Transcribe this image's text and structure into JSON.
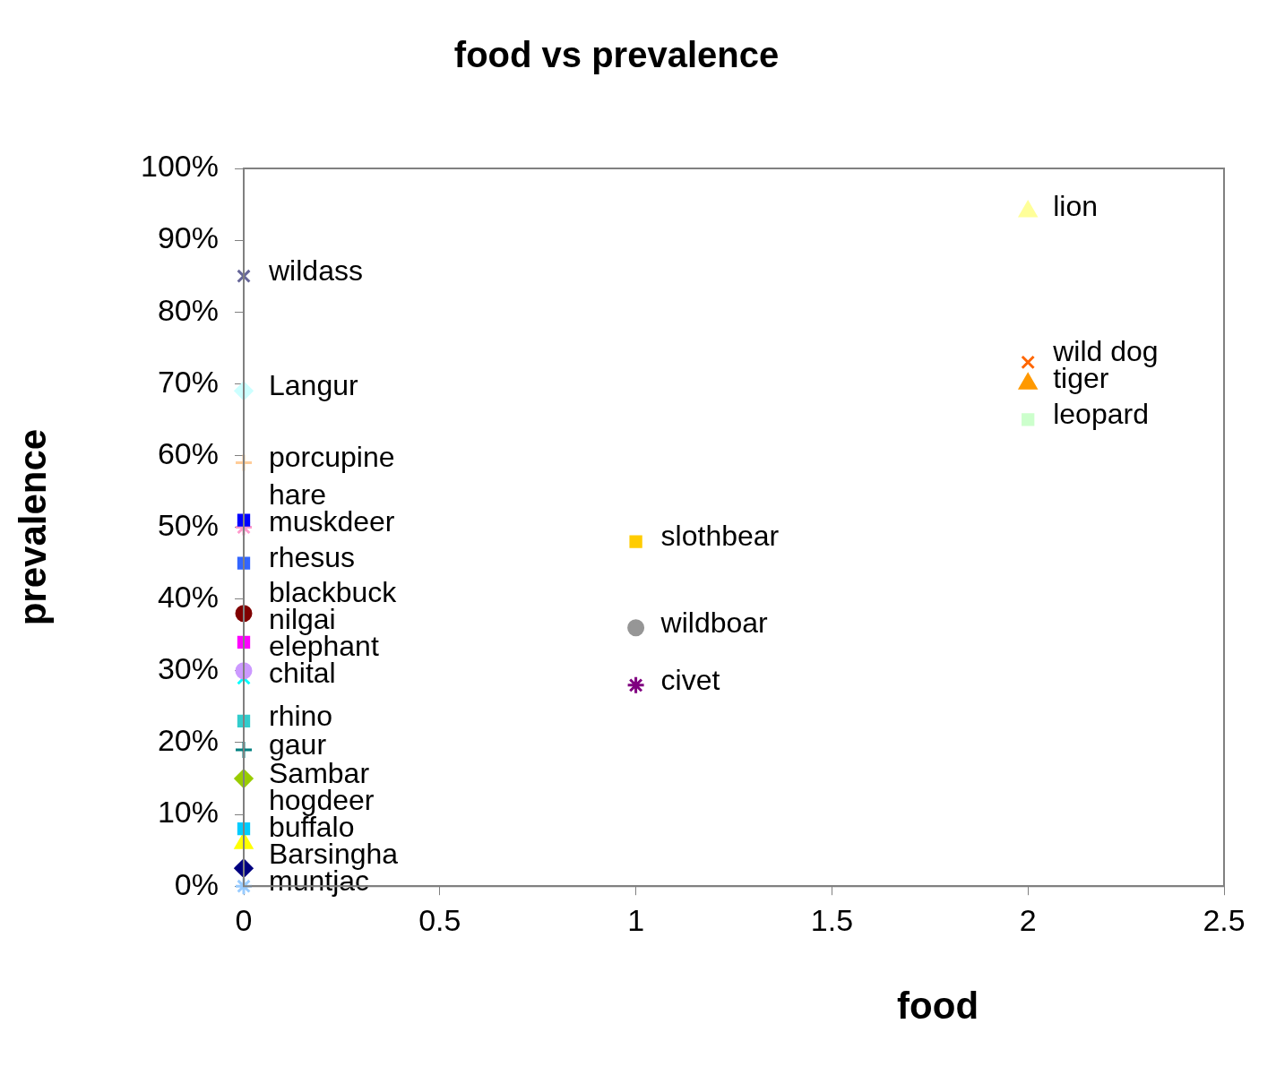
{
  "chart_data": {
    "type": "scatter",
    "title": "food vs prevalence",
    "xlabel": "food",
    "ylabel": "prevalence",
    "xlim": [
      0,
      2.5
    ],
    "xticks": [
      0,
      0.5,
      1,
      1.5,
      2,
      2.5
    ],
    "ylim": [
      0,
      100
    ],
    "yticks": [
      {
        "value": 0,
        "label": "0%"
      },
      {
        "value": 10,
        "label": "10%"
      },
      {
        "value": 20,
        "label": "20%"
      },
      {
        "value": 30,
        "label": "30%"
      },
      {
        "value": 40,
        "label": "40%"
      },
      {
        "value": 50,
        "label": "50%"
      },
      {
        "value": 60,
        "label": "60%"
      },
      {
        "value": 70,
        "label": "70%"
      },
      {
        "value": 80,
        "label": "80%"
      },
      {
        "value": 90,
        "label": "90%"
      },
      {
        "value": 100,
        "label": "100%"
      }
    ],
    "grid": false,
    "legend": false,
    "series": [
      {
        "name": "wildass",
        "color": "#666699",
        "marker": "x",
        "x": [
          0
        ],
        "values": [
          85
        ]
      },
      {
        "name": "Langur",
        "color": "#ccffff",
        "marker": "diamond",
        "x": [
          0
        ],
        "values": [
          69
        ]
      },
      {
        "name": "porcupine",
        "color": "#ffcc99",
        "marker": "plus",
        "x": [
          0
        ],
        "values": [
          59
        ]
      },
      {
        "name": "hare",
        "color": "#0000ff",
        "marker": "square",
        "x": [
          0
        ],
        "values": [
          51
        ]
      },
      {
        "name": "muskdeer",
        "color": "#ff99cc",
        "marker": "cross",
        "x": [
          0
        ],
        "values": [
          50
        ]
      },
      {
        "name": "rhesus",
        "color": "#3366ff",
        "marker": "square",
        "x": [
          0
        ],
        "values": [
          45
        ]
      },
      {
        "name": "elephant",
        "color": "#cc99ff",
        "marker": "circle",
        "x": [
          0
        ],
        "values": [
          30
        ]
      },
      {
        "name": "blackbuck",
        "color": "#800000",
        "marker": "circle",
        "x": [
          0
        ],
        "values": [
          38
        ]
      },
      {
        "name": "nilgai",
        "color": "#ff00ff",
        "marker": "square",
        "x": [
          0
        ],
        "values": [
          34
        ]
      },
      {
        "name": "chital",
        "color": "#00ffff",
        "marker": "x",
        "x": [
          0
        ],
        "values": [
          29
        ]
      },
      {
        "name": "rhino",
        "color": "#33cccc",
        "marker": "square",
        "x": [
          0
        ],
        "values": [
          23
        ]
      },
      {
        "name": "gaur",
        "color": "#008080",
        "marker": "plus",
        "x": [
          0
        ],
        "values": [
          19
        ]
      },
      {
        "name": "Sambar",
        "color": "#99cc00",
        "marker": "diamond",
        "x": [
          0
        ],
        "values": [
          15
        ]
      },
      {
        "name": "hogdeer",
        "color": "#00ccff",
        "marker": "square",
        "x": [
          0
        ],
        "values": [
          8
        ]
      },
      {
        "name": "buffalo",
        "color": "#ffff00",
        "marker": "triangle",
        "x": [
          0
        ],
        "values": [
          6
        ]
      },
      {
        "name": "Barsingha",
        "color": "#000080",
        "marker": "diamond",
        "x": [
          0
        ],
        "values": [
          2.5
        ]
      },
      {
        "name": "muntjac",
        "color": "#99ccff",
        "marker": "cross",
        "x": [
          0
        ],
        "values": [
          0
        ]
      },
      {
        "name": "slothbear",
        "color": "#ffcc00",
        "marker": "square",
        "x": [
          1
        ],
        "values": [
          48
        ]
      },
      {
        "name": "wildboar",
        "color": "#969696",
        "marker": "circle",
        "x": [
          1
        ],
        "values": [
          36
        ]
      },
      {
        "name": "civet",
        "color": "#800080",
        "marker": "cross",
        "x": [
          1
        ],
        "values": [
          28
        ]
      },
      {
        "name": "lion",
        "color": "#ffff99",
        "marker": "triangle",
        "x": [
          2
        ],
        "values": [
          94
        ]
      },
      {
        "name": "wild dog",
        "color": "#ff6600",
        "marker": "x",
        "x": [
          2
        ],
        "values": [
          73
        ]
      },
      {
        "name": "tiger",
        "color": "#ff9900",
        "marker": "triangle",
        "x": [
          2
        ],
        "values": [
          70
        ]
      },
      {
        "name": "leopard",
        "color": "#ccffcc",
        "marker": "square",
        "x": [
          2
        ],
        "values": [
          65
        ]
      }
    ]
  }
}
